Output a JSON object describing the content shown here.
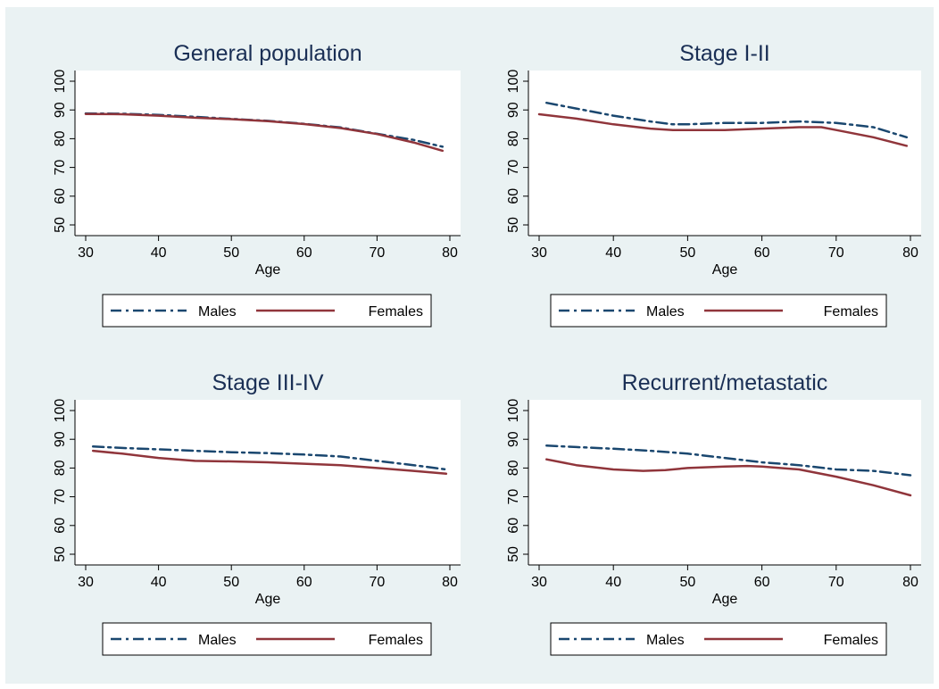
{
  "figure": {
    "background_color": "#eaf2f3",
    "plot_background_color": "#ffffff"
  },
  "legend": {
    "placement": "bottom",
    "entries": [
      {
        "label": "Males",
        "color": "#1a476f",
        "dash": "dash-dot"
      },
      {
        "label": "Females",
        "color": "#90353b",
        "dash": "solid"
      }
    ]
  },
  "chart_data": [
    {
      "type": "line",
      "title": "General population",
      "xlabel": "Age",
      "ylabel": "",
      "xlim": [
        30,
        80
      ],
      "ylim": [
        50,
        100
      ],
      "xticks": [
        30,
        40,
        50,
        60,
        70,
        80
      ],
      "yticks": [
        50,
        60,
        70,
        80,
        90,
        100
      ],
      "grid": false,
      "series": [
        {
          "name": "Males",
          "x": [
            30,
            35,
            40,
            45,
            50,
            55,
            60,
            65,
            70,
            75,
            79
          ],
          "y": [
            88.8,
            88.7,
            88.3,
            87.6,
            86.9,
            86.2,
            85.2,
            83.9,
            81.7,
            79.6,
            77.2
          ]
        },
        {
          "name": "Females",
          "x": [
            30,
            35,
            40,
            45,
            50,
            55,
            60,
            65,
            70,
            75,
            79
          ],
          "y": [
            88.6,
            88.5,
            88.0,
            87.3,
            86.8,
            86.1,
            85.1,
            83.7,
            81.6,
            78.7,
            75.8
          ]
        }
      ]
    },
    {
      "type": "line",
      "title": "Stage I-II",
      "xlabel": "Age",
      "ylabel": "",
      "xlim": [
        30,
        80
      ],
      "ylim": [
        50,
        100
      ],
      "xticks": [
        30,
        40,
        50,
        60,
        70,
        80
      ],
      "yticks": [
        50,
        60,
        70,
        80,
        90,
        100
      ],
      "grid": false,
      "series": [
        {
          "name": "Males",
          "x": [
            31,
            35,
            40,
            45,
            48,
            50,
            55,
            60,
            65,
            70,
            75,
            79.5
          ],
          "y": [
            92.5,
            90.5,
            88.0,
            86.0,
            85.0,
            85.0,
            85.5,
            85.5,
            86.0,
            85.5,
            84.0,
            80.5
          ]
        },
        {
          "name": "Females",
          "x": [
            30,
            35,
            40,
            45,
            48,
            50,
            55,
            60,
            65,
            68,
            70,
            75,
            79.5
          ],
          "y": [
            88.5,
            87.0,
            85.0,
            83.5,
            83.0,
            83.0,
            83.0,
            83.5,
            84.0,
            84.0,
            83.0,
            80.5,
            77.5
          ]
        }
      ]
    },
    {
      "type": "line",
      "title": "Stage III-IV",
      "xlabel": "Age",
      "ylabel": "",
      "xlim": [
        30,
        80
      ],
      "ylim": [
        50,
        100
      ],
      "xticks": [
        30,
        40,
        50,
        60,
        70,
        80
      ],
      "yticks": [
        50,
        60,
        70,
        80,
        90,
        100
      ],
      "grid": false,
      "series": [
        {
          "name": "Males",
          "x": [
            31,
            35,
            40,
            45,
            50,
            55,
            60,
            65,
            70,
            75,
            79.5
          ],
          "y": [
            87.5,
            87.0,
            86.5,
            86.0,
            85.5,
            85.2,
            84.7,
            84.0,
            82.5,
            81.0,
            79.5
          ]
        },
        {
          "name": "Females",
          "x": [
            31,
            35,
            40,
            45,
            50,
            55,
            60,
            65,
            70,
            75,
            79.5
          ],
          "y": [
            86.0,
            85.0,
            83.5,
            82.5,
            82.3,
            82.0,
            81.5,
            81.0,
            80.0,
            79.0,
            78.0
          ]
        }
      ]
    },
    {
      "type": "line",
      "title": "Recurrent/metastatic",
      "xlabel": "Age",
      "ylabel": "",
      "xlim": [
        30,
        80
      ],
      "ylim": [
        50,
        100
      ],
      "xticks": [
        30,
        40,
        50,
        60,
        70,
        80
      ],
      "yticks": [
        50,
        60,
        70,
        80,
        90,
        100
      ],
      "grid": false,
      "series": [
        {
          "name": "Males",
          "x": [
            31,
            35,
            40,
            45,
            50,
            55,
            60,
            65,
            70,
            75,
            80
          ],
          "y": [
            87.8,
            87.3,
            86.7,
            86.0,
            85.0,
            83.5,
            82.0,
            81.0,
            79.5,
            79.0,
            77.5
          ]
        },
        {
          "name": "Females",
          "x": [
            31,
            35,
            40,
            44,
            47,
            50,
            55,
            58,
            60,
            65,
            70,
            75,
            80
          ],
          "y": [
            83.0,
            81.0,
            79.5,
            79.0,
            79.3,
            80.0,
            80.5,
            80.7,
            80.5,
            79.5,
            77.0,
            74.0,
            70.5
          ]
        }
      ]
    }
  ]
}
